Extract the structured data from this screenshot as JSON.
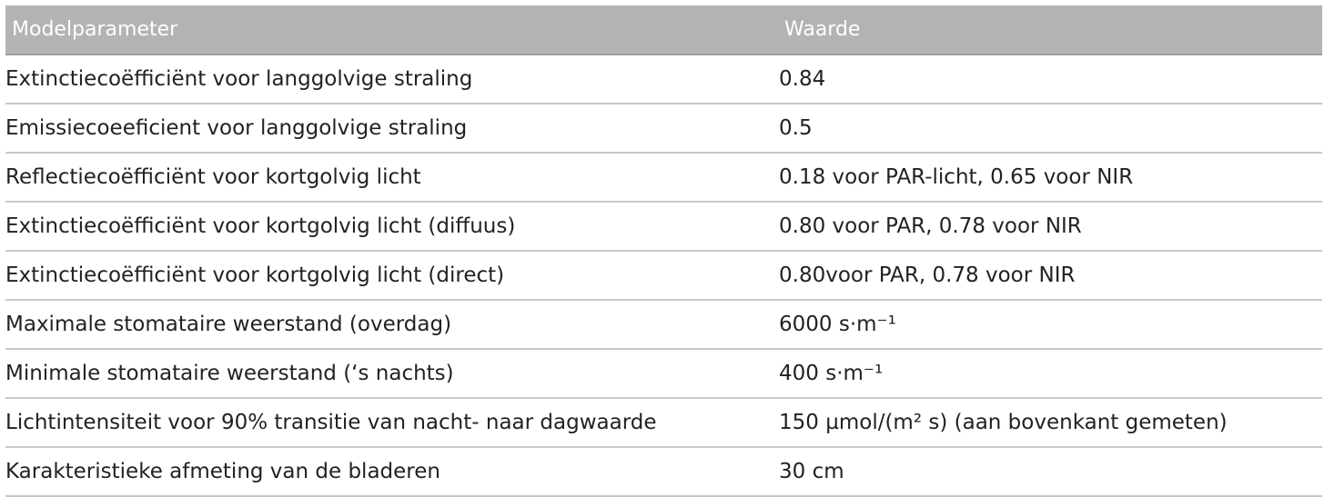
{
  "table": {
    "header": {
      "param": "Modelparameter",
      "value": "Waarde"
    },
    "rows": [
      {
        "param": "Extinctiecoëfficiënt voor langgolvige straling",
        "value": "0.84"
      },
      {
        "param": "Emissiecoeeficient voor langgolvige straling",
        "value": "0.5"
      },
      {
        "param": "Reflectiecoëfficiënt voor kortgolvig licht",
        "value": "0.18 voor PAR-licht, 0.65 voor NIR"
      },
      {
        "param": "Extinctiecoëfficiënt voor kortgolvig licht (diffuus)",
        "value": "0.80 voor PAR, 0.78 voor NIR"
      },
      {
        "param": "Extinctiecoëfficiënt voor kortgolvig licht (direct)",
        "value": "0.80voor PAR, 0.78 voor NIR"
      },
      {
        "param": "Maximale stomataire weerstand (overdag)",
        "value": "6000 s·m⁻¹"
      },
      {
        "param": "Minimale stomataire weerstand (‘s nachts)",
        "value": "400 s·m⁻¹"
      },
      {
        "param": "Lichtintensiteit voor 90% transitie van nacht- naar dagwaarde",
        "value": "150 µmol/(m² s) (aan bovenkant gemeten)"
      },
      {
        "param": "Karakteristieke afmeting van de bladeren",
        "value": "30 cm"
      }
    ]
  }
}
